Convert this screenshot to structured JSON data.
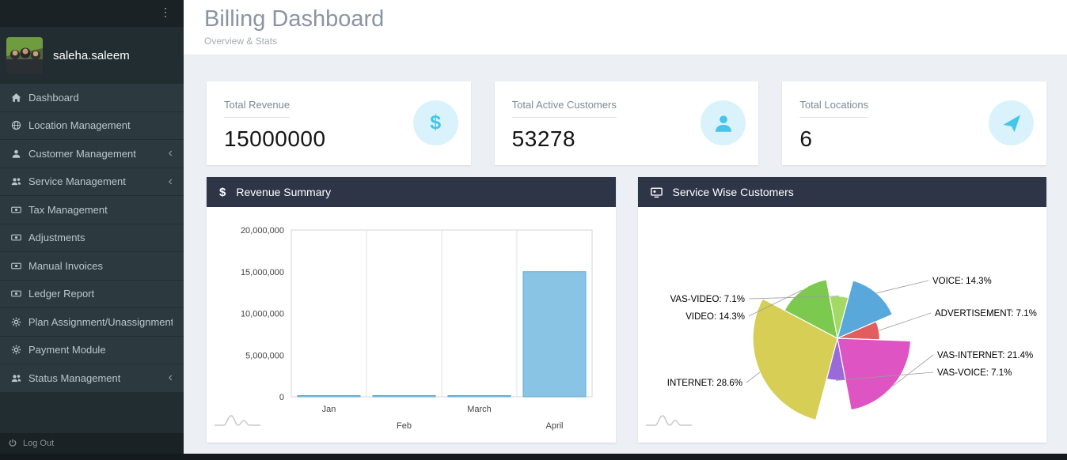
{
  "sidebar": {
    "user": "saleha.saleem",
    "items": [
      {
        "label": "Dashboard",
        "icon": "home"
      },
      {
        "label": "Location Management",
        "icon": "globe"
      },
      {
        "label": "Customer Management",
        "icon": "user",
        "chevron": true
      },
      {
        "label": "Service Management",
        "icon": "users",
        "chevron": true
      },
      {
        "label": "Tax Management",
        "icon": "money"
      },
      {
        "label": "Adjustments",
        "icon": "money"
      },
      {
        "label": "Manual Invoices",
        "icon": "money"
      },
      {
        "label": "Ledger Report",
        "icon": "money"
      },
      {
        "label": "Plan Assignment/Unassignment",
        "icon": "gear"
      },
      {
        "label": "Payment Module",
        "icon": "gear"
      },
      {
        "label": "Status Management",
        "icon": "users",
        "chevron": true
      }
    ],
    "logout_label": "Log Out"
  },
  "header": {
    "title": "Billing Dashboard",
    "subtitle": "Overview & Stats"
  },
  "stats": [
    {
      "label": "Total Revenue",
      "value": "15000000",
      "icon": "dollar-icon"
    },
    {
      "label": "Total Active Customers",
      "value": "53278",
      "icon": "user-icon"
    },
    {
      "label": "Total Locations",
      "value": "6",
      "icon": "paper-plane-icon"
    }
  ],
  "panels": {
    "revenue_title": "Revenue Summary",
    "service_title": "Service Wise Customers"
  },
  "theme": {
    "stat_icon_bg": "#d9f2fb",
    "stat_icon_color": "#43c5ec",
    "panel_header_bg": "#2d3547",
    "sidebar_bg": "#222d32"
  },
  "chart_data": [
    {
      "type": "bar",
      "title": "Revenue Summary",
      "categories": [
        "Jan",
        "Feb",
        "March",
        "April"
      ],
      "values": [
        100000,
        100000,
        100000,
        15000000
      ],
      "xlabel": "",
      "ylabel": "",
      "ylim": [
        0,
        20000000
      ],
      "yticks": [
        "20,000,000",
        "15,000,000",
        "10,000,000",
        "5,000,000",
        "0"
      ],
      "grid": "vertical",
      "color": "#8ac4e4",
      "border": "#5ea7cf"
    },
    {
      "type": "pie",
      "title": "Service Wise Customers",
      "labels": [
        "VOICE",
        "ADVERTISEMENT",
        "VAS-INTERNET",
        "VAS-VOICE",
        "INTERNET",
        "VIDEO",
        "VAS-VIDEO"
      ],
      "values": [
        14.3,
        7.1,
        21.4,
        7.1,
        28.6,
        14.3,
        7.1
      ],
      "display": [
        "VOICE: 14.3%",
        "ADVERTISEMENT: 7.1%",
        "VAS-INTERNET: 21.4%",
        "VAS-VOICE: 7.1%",
        "INTERNET: 28.6%",
        "VIDEO: 14.3%",
        "VAS-VIDEO: 7.1%"
      ],
      "colors": [
        "#58a8dc",
        "#e25d5d",
        "#de54c3",
        "#9a6adb",
        "#d6ce55",
        "#7cc94f",
        "#a4d968"
      ],
      "variable_radius": true,
      "legend_position": "labels-with-leader-lines"
    }
  ]
}
